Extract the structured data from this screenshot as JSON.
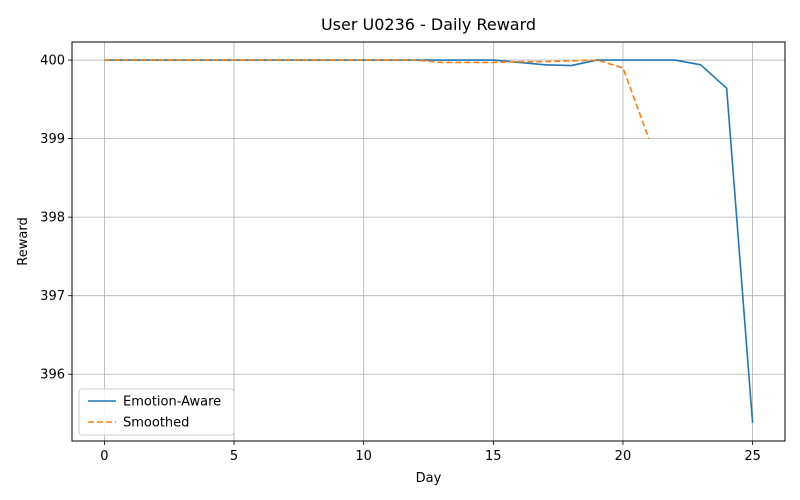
{
  "chart_data": {
    "type": "line",
    "title": "User U0236 - Daily Reward",
    "xlabel": "Day",
    "ylabel": "Reward",
    "xlim": [
      -1.25,
      26.25
    ],
    "ylim": [
      395.15,
      400.23
    ],
    "xticks": [
      0,
      5,
      10,
      15,
      20,
      25
    ],
    "yticks": [
      396,
      397,
      398,
      399,
      400
    ],
    "grid": true,
    "legend_position": "lower-left",
    "series": [
      {
        "name": "Emotion-Aware",
        "color": "#1f77b4",
        "style": "solid",
        "x": [
          0,
          1,
          2,
          3,
          4,
          5,
          6,
          7,
          8,
          9,
          10,
          11,
          12,
          13,
          14,
          15,
          16,
          17,
          18,
          19,
          20,
          21,
          22,
          23,
          24,
          25
        ],
        "y": [
          400.0,
          400.0,
          400.0,
          400.0,
          400.0,
          400.0,
          400.0,
          400.0,
          400.0,
          400.0,
          400.0,
          400.0,
          400.0,
          400.0,
          400.0,
          400.0,
          399.97,
          399.94,
          399.93,
          400.0,
          400.0,
          400.0,
          400.0,
          399.94,
          399.64,
          395.38
        ]
      },
      {
        "name": "Smoothed",
        "color": "#ff7f0e",
        "style": "dashed",
        "x": [
          0,
          1,
          2,
          3,
          4,
          5,
          6,
          7,
          8,
          9,
          10,
          11,
          12,
          13,
          14,
          15,
          16,
          17,
          18,
          19,
          20,
          21
        ],
        "y": [
          400.0,
          400.0,
          400.0,
          400.0,
          400.0,
          400.0,
          400.0,
          400.0,
          400.0,
          400.0,
          400.0,
          400.0,
          400.0,
          399.97,
          399.97,
          399.97,
          399.98,
          399.98,
          399.99,
          400.0,
          399.9,
          399.0
        ]
      }
    ]
  }
}
